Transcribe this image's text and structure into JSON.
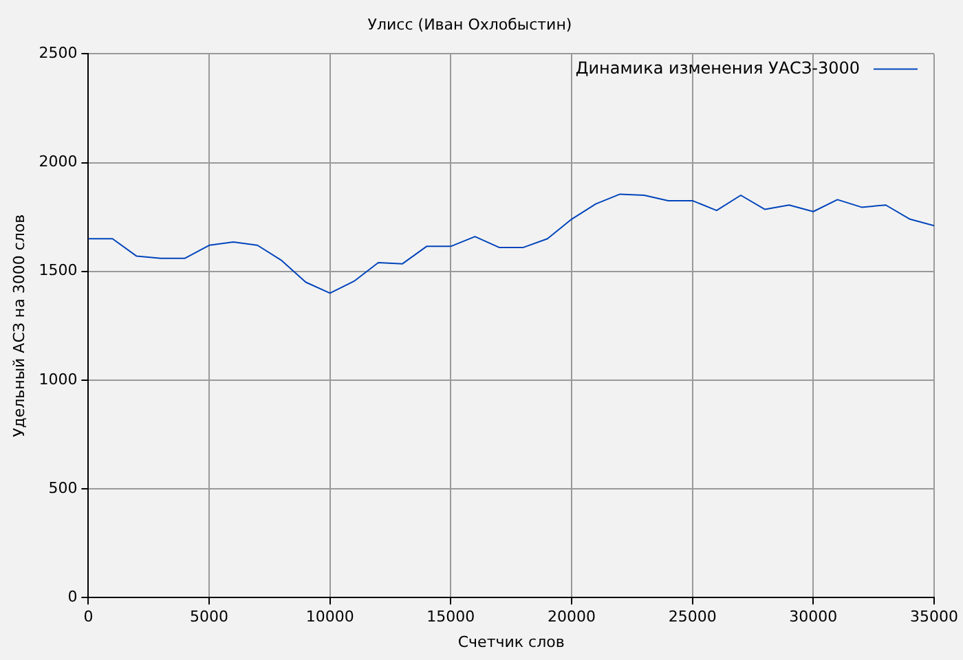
{
  "chart_data": {
    "type": "line",
    "title": "Улисс (Иван Охлобыстин)",
    "xlabel": "Счетчик слов",
    "ylabel": "Удельный АСЗ на 3000 слов",
    "x": [
      0,
      1000,
      2000,
      3000,
      4000,
      5000,
      6000,
      7000,
      8000,
      9000,
      10000,
      11000,
      12000,
      13000,
      14000,
      15000,
      16000,
      17000,
      18000,
      19000,
      20000,
      21000,
      22000,
      23000,
      24000,
      25000,
      26000,
      27000,
      28000,
      29000,
      30000,
      31000,
      32000,
      33000,
      34000,
      35000
    ],
    "series": [
      {
        "name": "Динамика изменения УАСЗ-3000",
        "color": "#0044bb",
        "values": [
          1650,
          1650,
          1570,
          1560,
          1560,
          1620,
          1635,
          1620,
          1550,
          1450,
          1400,
          1455,
          1540,
          1535,
          1615,
          1615,
          1660,
          1610,
          1610,
          1650,
          1740,
          1810,
          1855,
          1850,
          1825,
          1825,
          1780,
          1850,
          1785,
          1805,
          1775,
          1830,
          1795,
          1805,
          1740,
          1710
        ]
      }
    ],
    "xlim": [
      0,
      35000
    ],
    "xticks": [
      0,
      5000,
      10000,
      15000,
      20000,
      25000,
      30000,
      35000
    ],
    "ylim": [
      0,
      2500
    ],
    "yticks": [
      0,
      500,
      1000,
      1500,
      2000,
      2500
    ],
    "grid": true,
    "legend": "top right",
    "marker": "none",
    "line_style": "solid"
  }
}
